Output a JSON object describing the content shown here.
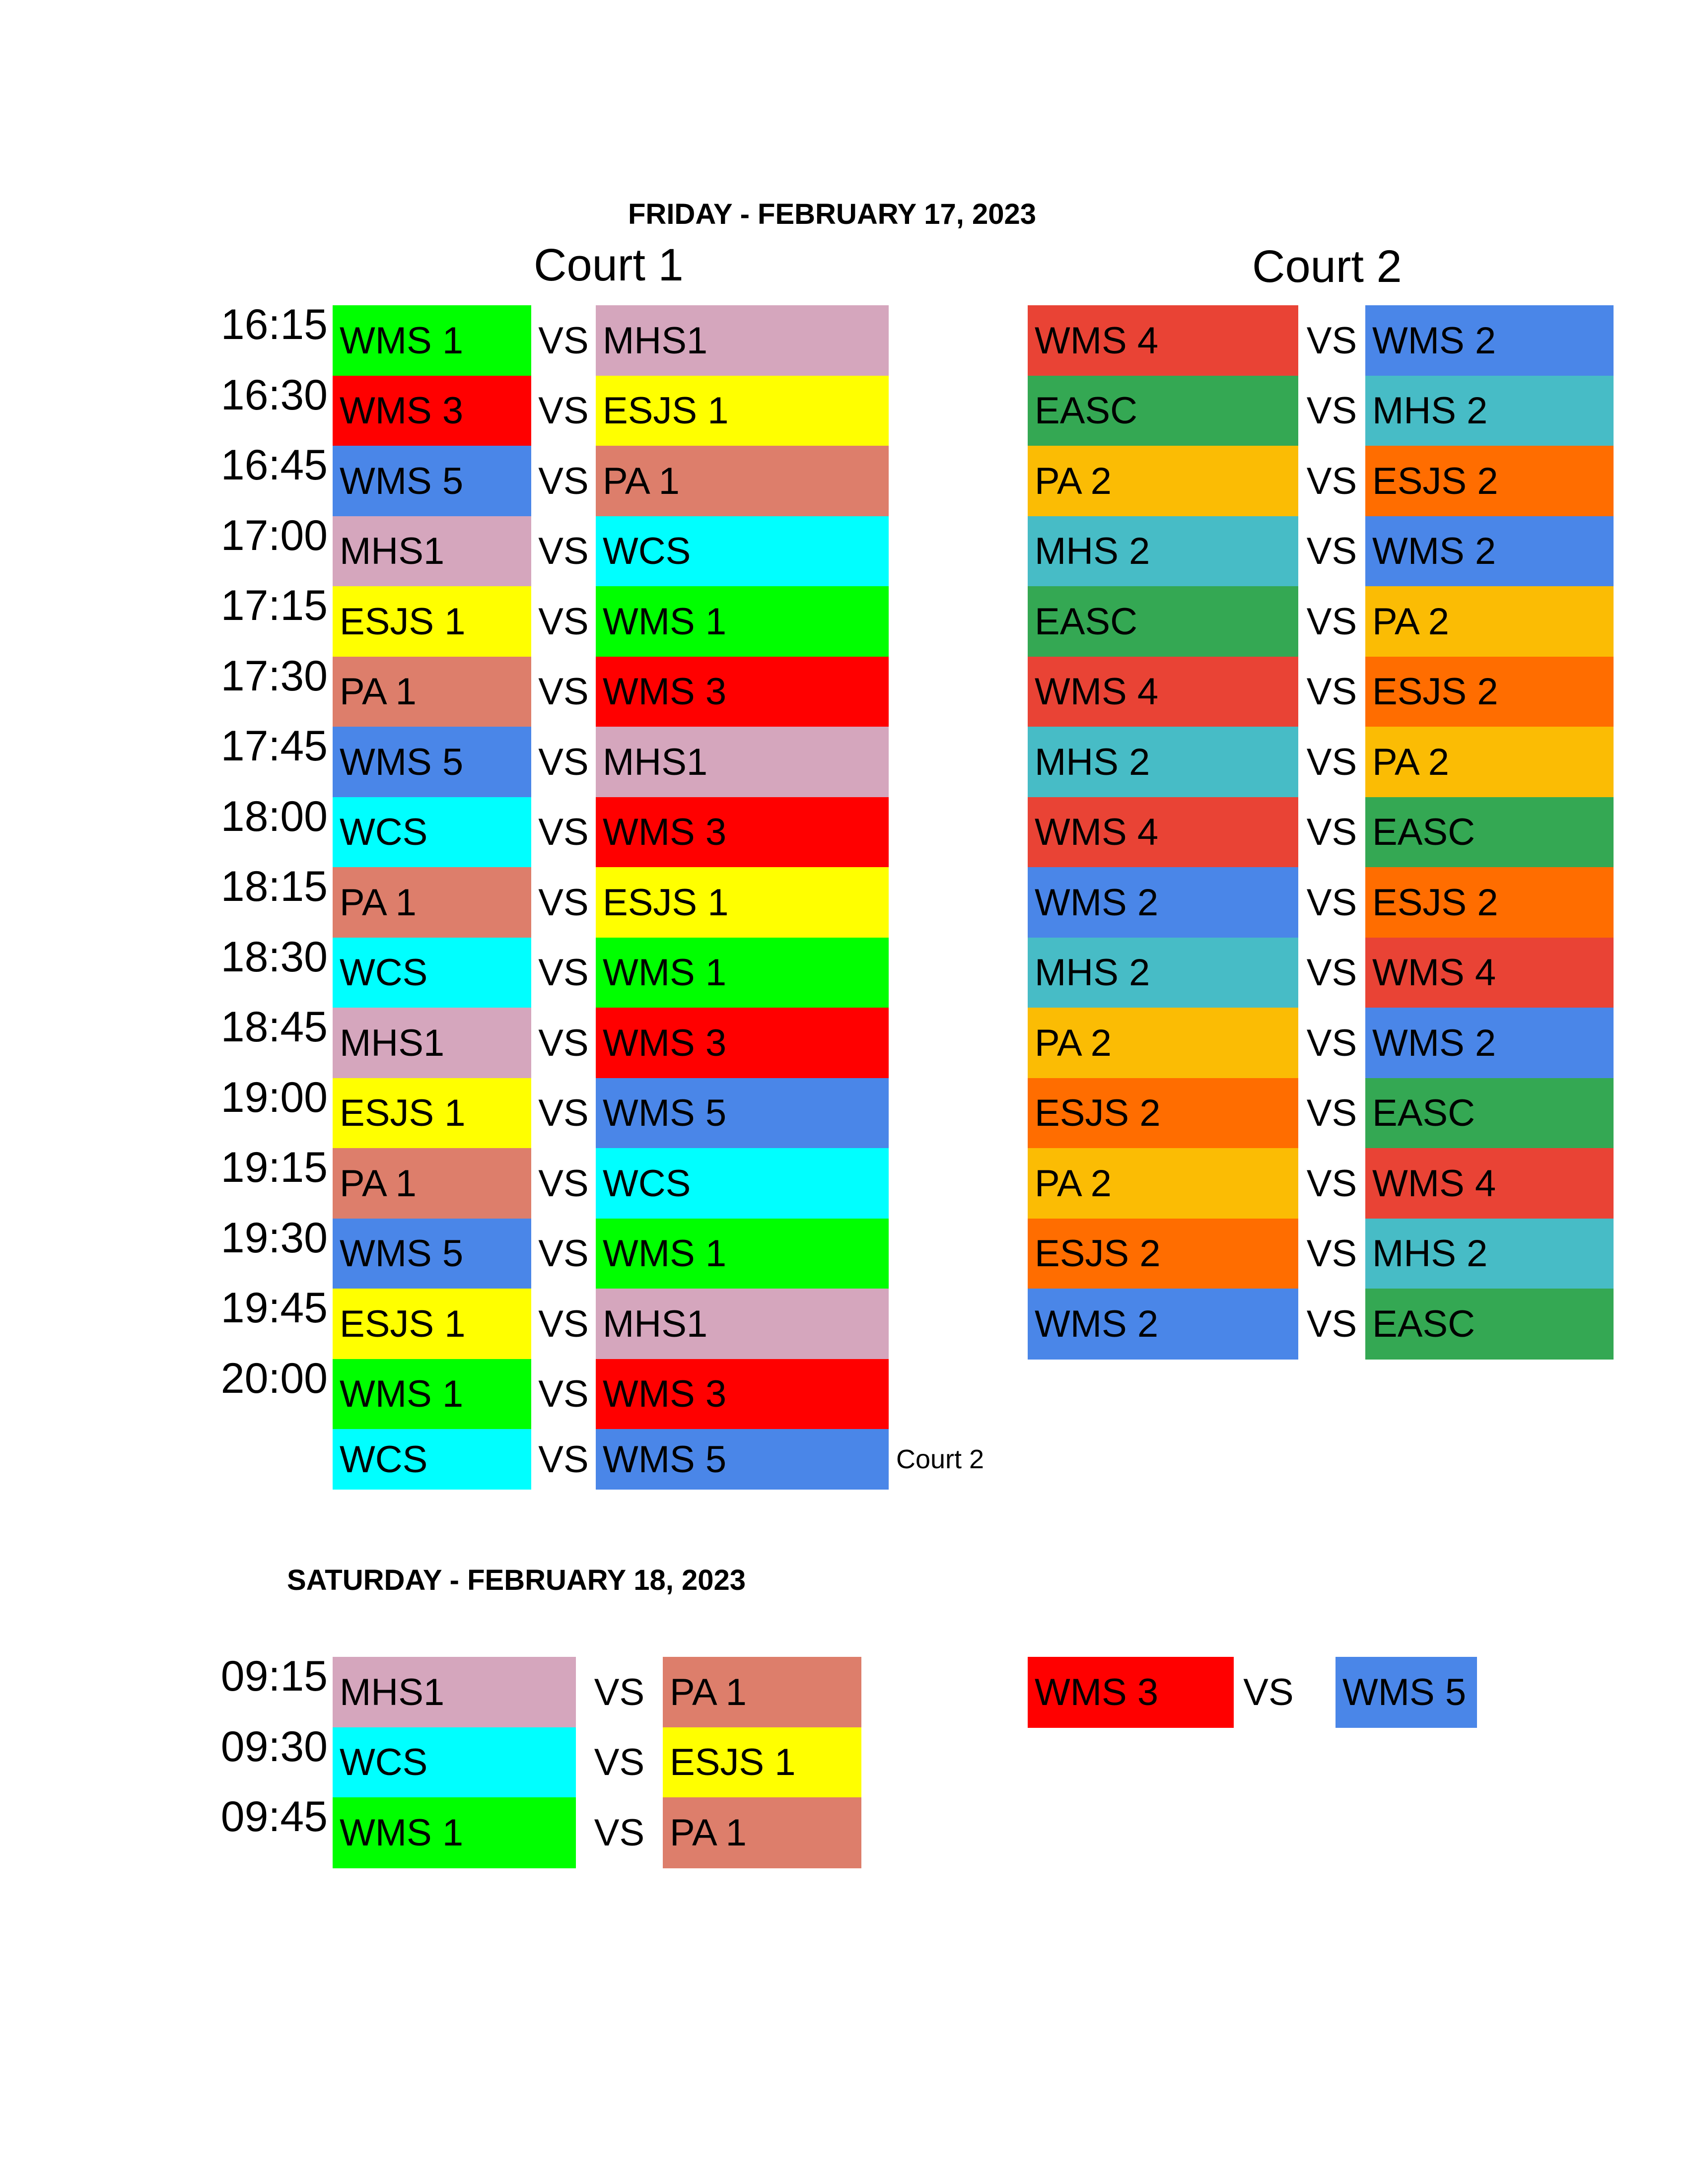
{
  "colors": {
    "WMS 1": "#00ff00",
    "WMS 3": "#ff0000",
    "WMS 5": "#4a86e8",
    "MHS1": "#d5a6bd",
    "ESJS 1": "#ffff00",
    "PA 1": "#dd7e6b",
    "WCS": "#00ffff",
    "WMS 4": "#e94335",
    "WMS 2": "#4a86e8",
    "EASC": "#34a853",
    "MHS 2": "#47bcc6",
    "PA 2": "#fbbc04",
    "ESJS 2": "#ff6d00"
  },
  "friday": {
    "title": "FRIDAY - FEBRUARY 17, 2023",
    "court1_label": "Court 1",
    "court2_label": "Court 2",
    "vs_label": "VS",
    "rows": [
      {
        "time": "16:15",
        "c1": [
          "WMS 1",
          "MHS1"
        ],
        "c2": [
          "WMS 4",
          "WMS 2"
        ]
      },
      {
        "time": "16:30",
        "c1": [
          "WMS 3",
          "ESJS 1"
        ],
        "c2": [
          "EASC",
          "MHS 2"
        ]
      },
      {
        "time": "16:45",
        "c1": [
          "WMS 5",
          "PA 1"
        ],
        "c2": [
          "PA 2",
          "ESJS 2"
        ]
      },
      {
        "time": "17:00",
        "c1": [
          "MHS1",
          "WCS"
        ],
        "c2": [
          "MHS 2",
          "WMS 2"
        ]
      },
      {
        "time": "17:15",
        "c1": [
          "ESJS 1",
          "WMS 1"
        ],
        "c2": [
          "EASC",
          "PA 2"
        ]
      },
      {
        "time": "17:30",
        "c1": [
          "PA 1",
          "WMS 3"
        ],
        "c2": [
          "WMS 4",
          "ESJS 2"
        ]
      },
      {
        "time": "17:45",
        "c1": [
          "WMS 5",
          "MHS1"
        ],
        "c2": [
          "MHS 2",
          "PA 2"
        ]
      },
      {
        "time": "18:00",
        "c1": [
          "WCS",
          "WMS 3"
        ],
        "c2": [
          "WMS 4",
          "EASC"
        ]
      },
      {
        "time": "18:15",
        "c1": [
          "PA 1",
          "ESJS 1"
        ],
        "c2": [
          "WMS 2",
          "ESJS 2"
        ]
      },
      {
        "time": "18:30",
        "c1": [
          "WCS",
          "WMS 1"
        ],
        "c2": [
          "MHS 2",
          "WMS 4"
        ]
      },
      {
        "time": "18:45",
        "c1": [
          "MHS1",
          "WMS 3"
        ],
        "c2": [
          "PA 2",
          "WMS 2"
        ]
      },
      {
        "time": "19:00",
        "c1": [
          "ESJS 1",
          "WMS 5"
        ],
        "c2": [
          "ESJS 2",
          "EASC"
        ]
      },
      {
        "time": "19:15",
        "c1": [
          "PA 1",
          "WCS"
        ],
        "c2": [
          "PA 2",
          "WMS 4"
        ]
      },
      {
        "time": "19:30",
        "c1": [
          "WMS 5",
          "WMS 1"
        ],
        "c2": [
          "ESJS 2",
          "MHS 2"
        ]
      },
      {
        "time": "19:45",
        "c1": [
          "ESJS 1",
          "MHS1"
        ],
        "c2": [
          "WMS 2",
          "EASC"
        ]
      },
      {
        "time": "20:00",
        "c1": [
          "WMS 1",
          "WMS 3"
        ],
        "c2": null
      },
      {
        "time": "",
        "c1": [
          "WCS",
          "WMS 5"
        ],
        "c2": null,
        "note": "Court 2"
      }
    ]
  },
  "saturday": {
    "title": "SATURDAY - FEBRUARY 18, 2023",
    "vs_label": "VS",
    "rows": [
      {
        "time": "09:15",
        "c1": [
          "MHS1",
          "PA 1"
        ],
        "c2": [
          "WMS 3",
          "WMS 5"
        ]
      },
      {
        "time": "09:30",
        "c1": [
          "WCS",
          "ESJS 1"
        ],
        "c2": null
      },
      {
        "time": "09:45",
        "c1": [
          "WMS 1",
          "PA 1"
        ],
        "c2": null
      }
    ]
  }
}
